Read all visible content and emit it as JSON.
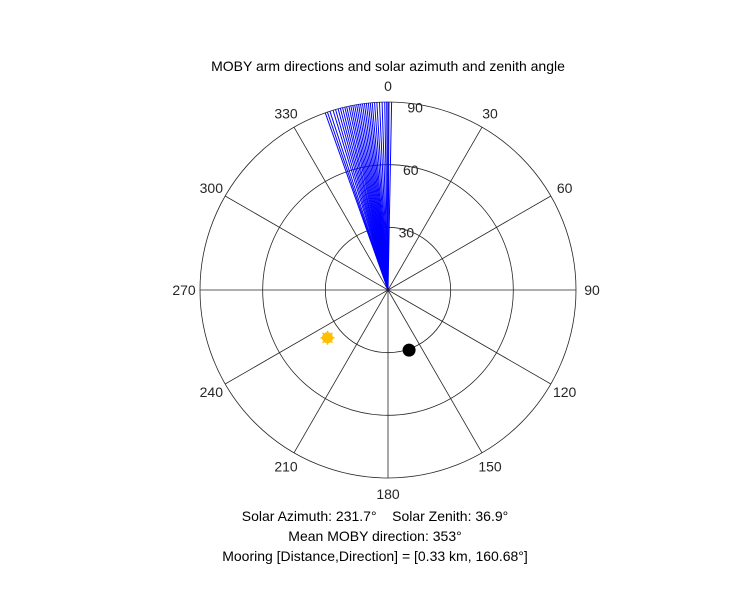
{
  "chart_data": {
    "type": "polar",
    "title": "MOBY arm directions and solar azimuth and zenith angle",
    "theta_zero": "top",
    "theta_direction": "clockwise",
    "theta_ticks": [
      0,
      30,
      60,
      90,
      120,
      150,
      180,
      210,
      240,
      270,
      300,
      330
    ],
    "theta_tick_labels": [
      "0",
      "30",
      "60",
      "90",
      "120",
      "150",
      "180",
      "210",
      "240",
      "270",
      "300",
      "330"
    ],
    "r_ticks": [
      30,
      60,
      90
    ],
    "r_tick_labels": [
      "30",
      "60",
      "90"
    ],
    "r_lim": [
      0,
      90
    ],
    "grid": true,
    "series": [
      {
        "type": "lines",
        "color": "#0000ff",
        "r": 90,
        "theta": [
          340.5,
          341.2,
          342.0,
          343.0,
          343.8,
          344.6,
          345.3,
          346.0,
          346.7,
          347.3,
          348.0,
          348.6,
          349.2,
          349.8,
          350.4,
          351.0,
          351.6,
          352.2,
          352.8,
          353.4,
          354.0,
          354.6,
          355.2,
          355.9,
          356.6,
          357.4,
          358.2,
          359.0,
          359.6,
          0.3,
          1.1
        ]
      },
      {
        "type": "marker",
        "marker": "sun",
        "theta": 231.7,
        "r": 36.9,
        "color": "#ffc000"
      },
      {
        "type": "marker",
        "marker": "dot",
        "theta": 160.68,
        "r": 30.5,
        "color": "#000000"
      }
    ]
  },
  "captions": {
    "solar": "Solar Azimuth: 231.7°    Solar Zenith: 36.9°",
    "mean_direction": "Mean MOBY direction: 353°",
    "mooring": "Mooring [Distance,Direction] = [0.33 km, 160.68°]"
  }
}
